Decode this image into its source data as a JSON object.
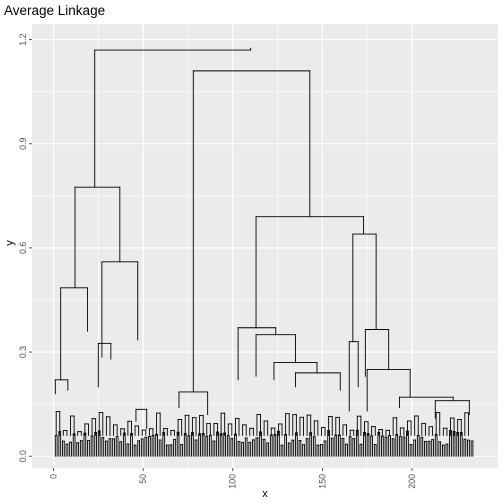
{
  "chart_data": {
    "type": "dendrogram",
    "title": "Average Linkage",
    "xlabel": "x",
    "ylabel": "y",
    "xlim": [
      -12,
      248
    ],
    "ylim": [
      -0.034,
      1.245
    ],
    "x_ticks": [
      0,
      50,
      100,
      150,
      200
    ],
    "x_tick_labels": [
      "0",
      "50",
      "100",
      "150",
      "200"
    ],
    "y_ticks": [
      0.0,
      0.3,
      0.6,
      0.9,
      1.2
    ],
    "y_tick_labels": [
      "0.0",
      "0.3",
      "0.6",
      "0.9",
      "1.2"
    ],
    "grid": true,
    "n_leaves": 235,
    "line_color": "#000000",
    "panel_color": "#ebebeb",
    "grid_color": "#ffffff",
    "links": [
      {
        "x1": 23,
        "x2": 110,
        "y": 1.17,
        "x1_h": 0.775,
        "x2_h": 1.175
      },
      {
        "x1": 78,
        "x2": 143,
        "y": 1.11,
        "x1_h": 0.185,
        "x2_h": 0.69
      },
      {
        "x1": 12,
        "x2": 37,
        "y": 0.775,
        "x1_h": 0.485,
        "x2_h": 0.56
      },
      {
        "x1": 113,
        "x2": 173,
        "y": 0.69,
        "x1_h": 0.37,
        "x2_h": 0.64
      },
      {
        "x1": 167,
        "x2": 180,
        "y": 0.64,
        "x1_h": 0.33,
        "x2_h": 0.365
      },
      {
        "x1": 4,
        "x2": 19,
        "y": 0.485,
        "x1_h": 0.22,
        "x2_h": 0.36
      },
      {
        "x1": 27,
        "x2": 47,
        "y": 0.56,
        "x1_h": 0.285,
        "x2_h": 0.335
      },
      {
        "x1": 103,
        "x2": 124,
        "y": 0.37,
        "x1_h": 0.22,
        "x2_h": 0.35
      },
      {
        "x1": 174,
        "x2": 187,
        "y": 0.365,
        "x1_h": 0.23,
        "x2_h": 0.25
      },
      {
        "x1": 113,
        "x2": 135,
        "y": 0.35,
        "x1_h": 0.23,
        "x2_h": 0.27
      },
      {
        "x1": 123,
        "x2": 147,
        "y": 0.27,
        "x1_h": 0.22,
        "x2_h": 0.24
      },
      {
        "x1": 175,
        "x2": 199,
        "y": 0.25,
        "x1_h": 0.13,
        "x2_h": 0.17
      },
      {
        "x1": 135,
        "x2": 160,
        "y": 0.24,
        "x1_h": 0.2,
        "x2_h": 0.19
      },
      {
        "x1": 165,
        "x2": 170,
        "y": 0.33,
        "x1_h": 0.13,
        "x2_h": 0.2
      },
      {
        "x1": 25,
        "x2": 32,
        "y": 0.325,
        "x1_h": 0.2,
        "x2_h": 0.28
      },
      {
        "x1": 1,
        "x2": 8,
        "y": 0.22,
        "x1_h": 0.18,
        "x2_h": 0.19
      },
      {
        "x1": 70,
        "x2": 86,
        "y": 0.185,
        "x1_h": 0.14,
        "x2_h": 0.12
      },
      {
        "x1": 193,
        "x2": 223,
        "y": 0.17,
        "x1_h": 0.14,
        "x2_h": 0.16
      },
      {
        "x1": 213,
        "x2": 232,
        "y": 0.16,
        "x1_h": 0.11,
        "x2_h": 0.12
      },
      {
        "x1": 46,
        "x2": 52,
        "y": 0.135,
        "x1_h": 0.1,
        "x2_h": 0.08
      }
    ]
  }
}
